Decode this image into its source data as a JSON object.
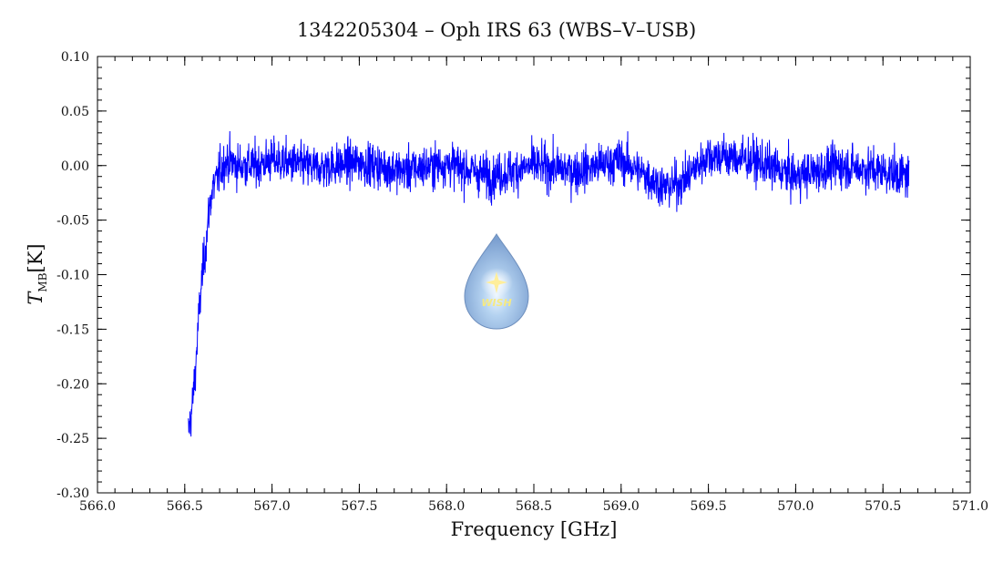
{
  "chart_data": {
    "type": "line",
    "title": "1342205304 – Oph IRS 63 (WBS–V–USB)",
    "xlabel": "Frequency [GHz]",
    "ylabel_main": "T",
    "ylabel_sub": "MB",
    "ylabel_unit": "[K]",
    "xlim": [
      566.0,
      571.0
    ],
    "ylim": [
      -0.3,
      0.1
    ],
    "xticks": [
      "566.0",
      "566.5",
      "567.0",
      "567.5",
      "568.0",
      "568.5",
      "569.0",
      "569.5",
      "570.0",
      "570.5",
      "571.0"
    ],
    "yticks": [
      "0.10",
      "0.05",
      "0.00",
      "-0.05",
      "-0.10",
      "-0.15",
      "-0.20",
      "-0.25",
      "-0.30"
    ],
    "grid": false,
    "series": [
      {
        "color": "#0000ff",
        "x": [
          566.52,
          566.54,
          566.56,
          566.58,
          566.6,
          566.62,
          566.64,
          566.66,
          566.68,
          566.7,
          566.72,
          566.75,
          566.8,
          566.9,
          567.0,
          567.25,
          567.5,
          567.75,
          568.0,
          568.25,
          568.5,
          568.75,
          569.0,
          569.25,
          569.35,
          569.5,
          569.75,
          570.0,
          570.25,
          570.5,
          570.65
        ],
        "y": [
          -0.245,
          -0.225,
          -0.19,
          -0.14,
          -0.1,
          -0.075,
          -0.04,
          -0.02,
          -0.015,
          -0.005,
          0.0,
          0.005,
          0.0,
          0.0,
          0.005,
          -0.002,
          0.003,
          -0.005,
          0.002,
          -0.01,
          0.0,
          -0.005,
          0.005,
          -0.02,
          -0.015,
          0.01,
          0.005,
          -0.01,
          0.0,
          -0.005,
          -0.01
        ]
      }
    ]
  },
  "logo": {
    "name": "WISH logo",
    "text": "WISH"
  }
}
